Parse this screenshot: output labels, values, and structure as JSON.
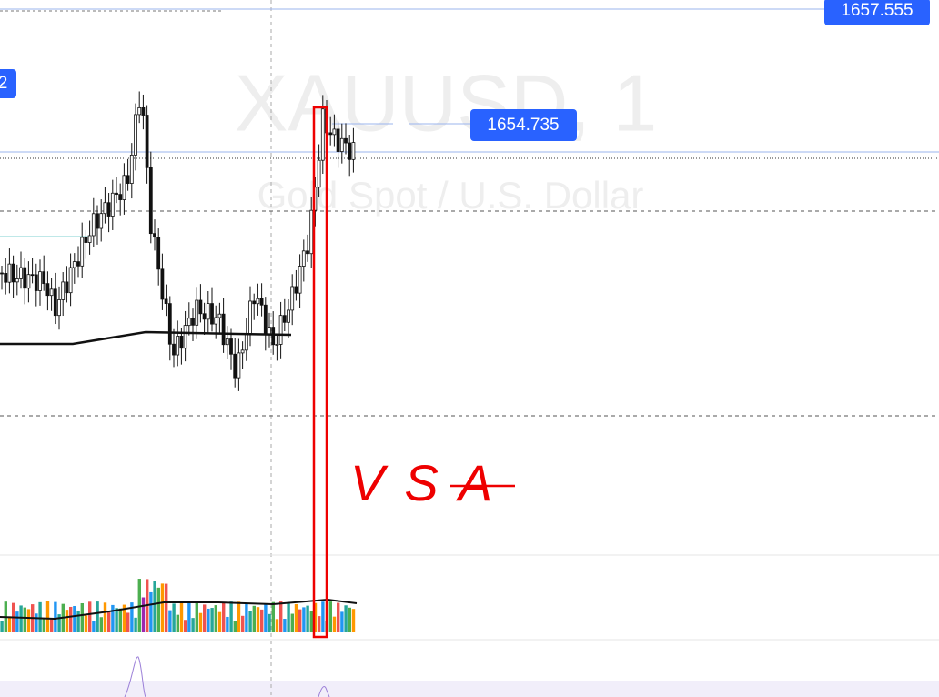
{
  "price_labels": {
    "top": "1657.555",
    "current": "1654.735",
    "left_cut": "2"
  },
  "watermark": {
    "symbol": "XAUUSD, 1",
    "description": "Gold Spot / U.S. Dollar"
  },
  "annotation": "VSA"
}
